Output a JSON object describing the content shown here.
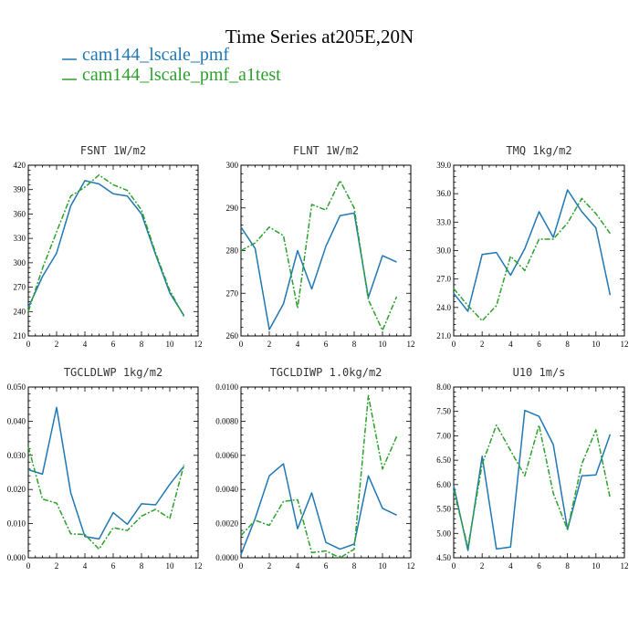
{
  "title": "Time Series at205E,20N",
  "legend": [
    {
      "name": "cam144_lscale_pmf",
      "color": "#1f77b4",
      "dash": "solid"
    },
    {
      "name": "cam144_lscale_pmf_a1test",
      "color": "#2ca02c",
      "dash": "dashdot"
    }
  ],
  "chart_data": [
    {
      "type": "line",
      "title": "FSNT   1W/m2",
      "xlim": [
        0,
        12
      ],
      "ylim": [
        210,
        420
      ],
      "xticks": [
        "0",
        "2",
        "4",
        "6",
        "8",
        "10",
        "12"
      ],
      "yticks": [
        "210",
        "240",
        "270",
        "300",
        "330",
        "360",
        "390",
        "420"
      ],
      "x": [
        0,
        1,
        2,
        3,
        4,
        5,
        6,
        7,
        8,
        9,
        10,
        11
      ],
      "series": [
        {
          "name": "cam144_lscale_pmf",
          "values": [
            245,
            283,
            312,
            370,
            401,
            397,
            385,
            382,
            360,
            310,
            263,
            235
          ]
        },
        {
          "name": "cam144_lscale_pmf_a1test",
          "values": [
            240,
            293,
            338,
            382,
            393,
            408,
            396,
            389,
            365,
            312,
            266,
            234
          ]
        }
      ]
    },
    {
      "type": "line",
      "title": "FLNT   1W/m2",
      "xlim": [
        0,
        12
      ],
      "ylim": [
        260,
        300
      ],
      "xticks": [
        "0",
        "2",
        "4",
        "6",
        "8",
        "10",
        "12"
      ],
      "yticks": [
        "260",
        "270",
        "280",
        "290",
        "300"
      ],
      "x": [
        0,
        1,
        2,
        3,
        4,
        5,
        6,
        7,
        8,
        9,
        10,
        11
      ],
      "series": [
        {
          "name": "cam144_lscale_pmf",
          "values": [
            285.5,
            280.5,
            261.5,
            267.5,
            280.0,
            271.0,
            281.0,
            288.2,
            288.8,
            269.0,
            278.8,
            277.3
          ]
        },
        {
          "name": "cam144_lscale_pmf_a1test",
          "values": [
            280.0,
            281.8,
            285.5,
            283.5,
            266.5,
            290.8,
            289.5,
            296.4,
            290.0,
            268.5,
            261.3,
            269.2
          ]
        }
      ]
    },
    {
      "type": "line",
      "title": "TMQ   1kg/m2",
      "xlim": [
        0,
        12
      ],
      "ylim": [
        21.0,
        39.0
      ],
      "xticks": [
        "0",
        "2",
        "4",
        "6",
        "8",
        "10",
        "12"
      ],
      "yticks": [
        "21.0",
        "24.0",
        "27.0",
        "30.0",
        "33.0",
        "36.0",
        "39.0"
      ],
      "x": [
        0,
        1,
        2,
        3,
        4,
        5,
        6,
        7,
        8,
        9,
        10,
        11
      ],
      "series": [
        {
          "name": "cam144_lscale_pmf",
          "values": [
            25.5,
            23.6,
            29.6,
            29.8,
            27.4,
            30.2,
            34.1,
            31.4,
            36.4,
            34.1,
            32.4,
            25.3
          ]
        },
        {
          "name": "cam144_lscale_pmf_a1test",
          "values": [
            26.0,
            24.2,
            22.6,
            24.2,
            29.4,
            27.9,
            31.2,
            31.2,
            32.9,
            35.5,
            33.9,
            31.8
          ]
        }
      ]
    },
    {
      "type": "line",
      "title": "TGCLDLWP   1kg/m2",
      "xlim": [
        0,
        12
      ],
      "ylim": [
        0.0,
        0.05
      ],
      "xticks": [
        "0",
        "2",
        "4",
        "6",
        "8",
        "10",
        "12"
      ],
      "yticks": [
        "0.000",
        "0.010",
        "0.020",
        "0.030",
        "0.040",
        "0.050"
      ],
      "x": [
        0,
        1,
        2,
        3,
        4,
        5,
        6,
        7,
        8,
        9,
        10,
        11
      ],
      "series": [
        {
          "name": "cam144_lscale_pmf",
          "values": [
            0.0258,
            0.0245,
            0.044,
            0.019,
            0.0062,
            0.0055,
            0.0132,
            0.0098,
            0.0158,
            0.0155,
            0.0215,
            0.0268
          ]
        },
        {
          "name": "cam144_lscale_pmf_a1test",
          "values": [
            0.0325,
            0.0172,
            0.016,
            0.007,
            0.0068,
            0.0025,
            0.0088,
            0.008,
            0.0122,
            0.0142,
            0.0115,
            0.0272
          ]
        }
      ]
    },
    {
      "type": "line",
      "title": "TGCLDIWP   1.0kg/m2",
      "xlim": [
        0,
        12
      ],
      "ylim": [
        0.0,
        0.01
      ],
      "xticks": [
        "0",
        "2",
        "4",
        "6",
        "8",
        "10",
        "12"
      ],
      "yticks": [
        "0.0000",
        "0.0020",
        "0.0040",
        "0.0060",
        "0.0080",
        "0.0100"
      ],
      "x": [
        0,
        1,
        2,
        3,
        4,
        5,
        6,
        7,
        8,
        9,
        10,
        11
      ],
      "series": [
        {
          "name": "cam144_lscale_pmf",
          "values": [
            0.0002,
            0.0023,
            0.0048,
            0.0055,
            0.0017,
            0.0038,
            0.0009,
            0.0005,
            0.0008,
            0.0048,
            0.0029,
            0.0025
          ]
        },
        {
          "name": "cam144_lscale_pmf_a1test",
          "values": [
            0.0013,
            0.0022,
            0.0019,
            0.0033,
            0.0034,
            0.0003,
            0.0004,
            0.0,
            0.0005,
            0.0095,
            0.0052,
            0.0071
          ]
        }
      ]
    },
    {
      "type": "line",
      "title": "U10   1m/s",
      "xlim": [
        0,
        12
      ],
      "ylim": [
        4.5,
        8.0
      ],
      "xticks": [
        "0",
        "2",
        "4",
        "6",
        "8",
        "10",
        "12"
      ],
      "yticks": [
        "4.50",
        "5.00",
        "5.50",
        "6.00",
        "6.50",
        "7.00",
        "7.50",
        "8.00"
      ],
      "x": [
        0,
        1,
        2,
        3,
        4,
        5,
        6,
        7,
        8,
        9,
        10,
        11
      ],
      "series": [
        {
          "name": "cam144_lscale_pmf",
          "values": [
            5.98,
            4.65,
            6.58,
            4.68,
            4.72,
            7.52,
            7.4,
            6.82,
            5.08,
            6.18,
            6.2,
            7.03
          ]
        },
        {
          "name": "cam144_lscale_pmf_a1test",
          "values": [
            5.88,
            4.72,
            6.42,
            7.22,
            6.7,
            6.18,
            7.22,
            5.82,
            5.08,
            6.42,
            7.12,
            5.72
          ]
        }
      ]
    }
  ]
}
